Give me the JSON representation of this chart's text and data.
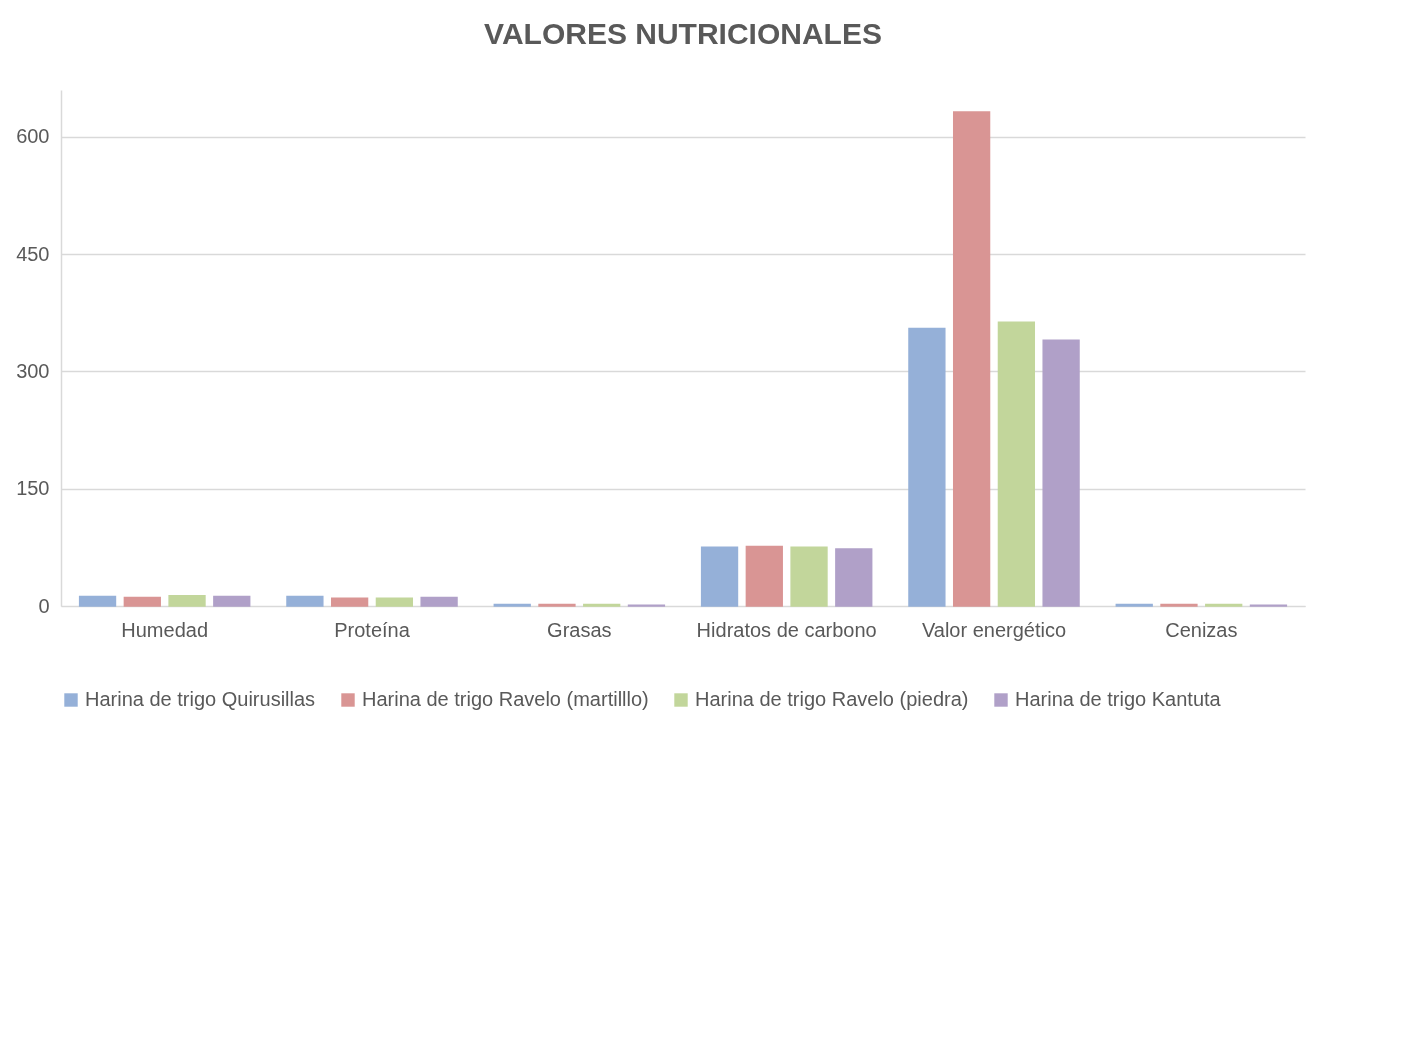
{
  "chart_data": {
    "type": "bar",
    "title": "VALORES NUTRICIONALES",
    "categories": [
      "Humedad",
      "Proteína",
      "Grasas",
      "Hidratos de carbono",
      "Valor energético",
      "Cenizas"
    ],
    "series": [
      {
        "name": "Harina de trigo Quirusillas",
        "color": "#95b0d8",
        "values": [
          12,
          12,
          2,
          75,
          355,
          2
        ]
      },
      {
        "name": "Harina de trigo Ravelo (martilllo)",
        "color": "#d99594",
        "values": [
          11,
          10,
          2,
          76,
          632,
          2
        ]
      },
      {
        "name": "Harina de trigo Ravelo (piedra)",
        "color": "#c2d69b",
        "values": [
          13,
          10,
          2,
          75,
          363,
          2
        ]
      },
      {
        "name": "Harina de trigo Kantuta",
        "color": "#b0a0c8",
        "values": [
          12,
          11,
          1,
          73,
          340,
          1
        ]
      }
    ],
    "ylim": [
      0,
      660
    ],
    "yticks": [
      0,
      150,
      300,
      450,
      600
    ],
    "grid": "y",
    "legend": "bottom"
  }
}
